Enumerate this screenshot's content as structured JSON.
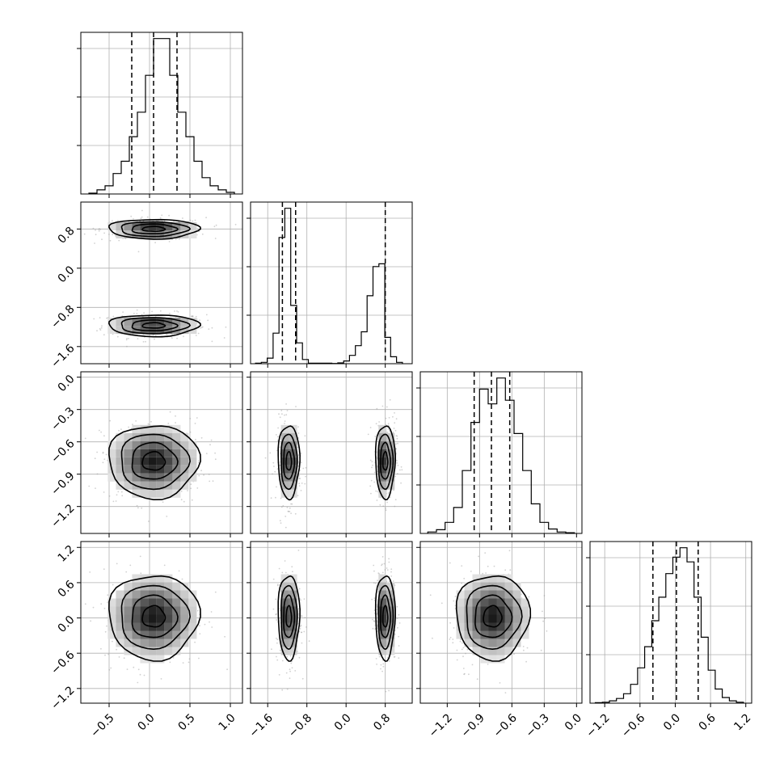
{
  "chart_data": {
    "type": "corner",
    "parameters": [
      {
        "index": 0,
        "range": [
          -0.85,
          1.15
        ],
        "ticks": [
          -0.5,
          0.0,
          0.5,
          1.0
        ],
        "tick_labels": [
          "−0.5",
          "0.0",
          "0.5",
          "1.0"
        ],
        "quantiles": [
          -0.22,
          0.05,
          0.34
        ],
        "mean": 0.05,
        "std": 0.28
      },
      {
        "index": 1,
        "range": [
          -1.95,
          1.35
        ],
        "ticks": [
          -1.6,
          -0.8,
          0.0,
          0.8
        ],
        "tick_labels": [
          "−1.6",
          "−0.8",
          "0.0",
          "0.8"
        ],
        "quantiles": [
          -1.3,
          -1.03,
          0.8
        ],
        "modes": [
          {
            "mean": -1.17,
            "std": 0.11,
            "weight": 0.5
          },
          {
            "mean": 0.8,
            "std": 0.1,
            "weight": 0.5
          }
        ]
      },
      {
        "index": 2,
        "range": [
          -1.45,
          0.05
        ],
        "ticks": [
          -1.2,
          -0.9,
          -0.6,
          -0.3,
          0.0
        ],
        "tick_labels": [
          "−1.2",
          "−0.9",
          "−0.6",
          "−0.3",
          "0.0"
        ],
        "quantiles": [
          -0.95,
          -0.79,
          -0.62
        ],
        "mean": -0.78,
        "std": 0.17
      },
      {
        "index": 3,
        "range": [
          -1.45,
          1.3
        ],
        "ticks": [
          -1.2,
          -0.6,
          0.0,
          0.6,
          1.2
        ],
        "tick_labels": [
          "−1.2",
          "−0.6",
          "0.0",
          "0.6",
          "1.2"
        ],
        "quantiles": [
          -0.38,
          0.02,
          0.39
        ],
        "mean": 0.02,
        "std": 0.36
      }
    ],
    "histograms": [
      {
        "param": 0,
        "bins": [
          -0.75,
          -0.65,
          -0.55,
          -0.45,
          -0.35,
          -0.25,
          -0.15,
          -0.05,
          0.05,
          0.15,
          0.25,
          0.35,
          0.45,
          0.55,
          0.65,
          0.75,
          0.85,
          0.95,
          1.05
        ],
        "counts": [
          1,
          5,
          10,
          25,
          40,
          70,
          100,
          145,
          190,
          190,
          145,
          100,
          70,
          40,
          20,
          10,
          5,
          2
        ]
      },
      {
        "param": 1,
        "bins": [
          -1.85,
          -1.73,
          -1.61,
          -1.49,
          -1.37,
          -1.25,
          -1.13,
          -1.01,
          -0.89,
          -0.77,
          -0.29,
          -0.17,
          -0.05,
          0.07,
          0.19,
          0.31,
          0.43,
          0.55,
          0.67,
          0.79,
          0.91,
          1.03,
          1.15
        ],
        "counts": [
          2,
          5,
          20,
          110,
          455,
          560,
          210,
          75,
          15,
          2,
          1,
          3,
          10,
          30,
          65,
          115,
          245,
          350,
          360,
          95,
          25,
          5
        ]
      },
      {
        "param": 2,
        "bins": [
          -1.38,
          -1.3,
          -1.22,
          -1.14,
          -1.06,
          -0.98,
          -0.9,
          -0.82,
          -0.74,
          -0.66,
          -0.58,
          -0.5,
          -0.42,
          -0.34,
          -0.26,
          -0.18,
          -0.1,
          -0.02
        ],
        "counts": [
          2,
          5,
          15,
          35,
          85,
          150,
          195,
          175,
          210,
          180,
          135,
          85,
          40,
          15,
          6,
          2,
          1
        ]
      },
      {
        "param": 3,
        "bins": [
          -1.36,
          -1.24,
          -1.12,
          -1.0,
          -0.88,
          -0.76,
          -0.64,
          -0.52,
          -0.4,
          -0.28,
          -0.16,
          -0.04,
          0.08,
          0.2,
          0.32,
          0.44,
          0.56,
          0.68,
          0.8,
          0.92,
          1.04,
          1.16
        ],
        "counts": [
          1,
          2,
          5,
          10,
          20,
          40,
          75,
          120,
          175,
          225,
          275,
          310,
          330,
          300,
          225,
          140,
          70,
          30,
          12,
          5,
          2
        ]
      }
    ],
    "pairs": [
      {
        "x": 0,
        "y": 1
      },
      {
        "x": 0,
        "y": 2
      },
      {
        "x": 1,
        "y": 2
      },
      {
        "x": 0,
        "y": 3
      },
      {
        "x": 1,
        "y": 3
      },
      {
        "x": 2,
        "y": 3
      }
    ],
    "contour_levels_sigma": [
      0.5,
      1.0,
      1.5,
      2.0
    ],
    "grid": true,
    "colors": {
      "line": "#000000",
      "grid": "#b0b0b0",
      "points": "#999999"
    }
  }
}
